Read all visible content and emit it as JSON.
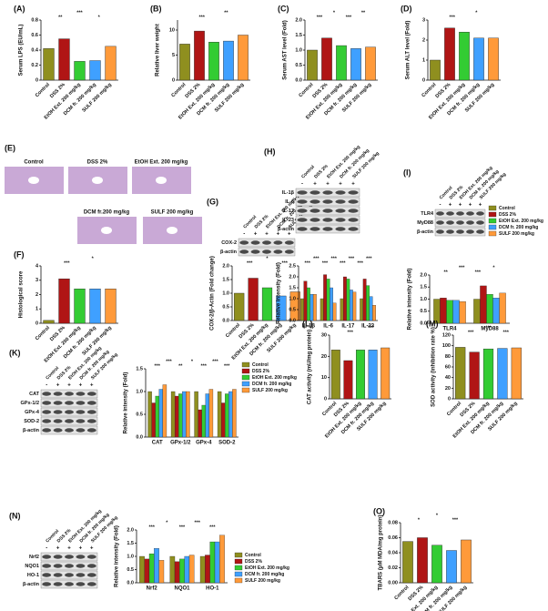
{
  "chart_data": [
    {
      "type": "bar",
      "label": "(A)",
      "y_label": "Serum LPS (EU/mL)",
      "categories": [
        "Control",
        "DSS 2%",
        "EtOH Ext. 200 mg/kg",
        "DCM fr. 200 mg/kg",
        "SULF 200 mg/kg"
      ],
      "values": [
        0.42,
        0.55,
        0.25,
        0.26,
        0.45
      ],
      "colors": [
        "#8f8f1f",
        "#b01515",
        "#33cc33",
        "#3fa0ff",
        "#ff9a3a"
      ],
      "ylim": [
        0,
        0.8
      ],
      "yticks": [
        0,
        0.2,
        0.4,
        0.6,
        0.8
      ],
      "annotations": [
        "**",
        "***",
        "*"
      ]
    },
    {
      "type": "bar",
      "label": "(B)",
      "y_label": "Relative liver weight",
      "categories": [
        "Control",
        "DSS 2%",
        "EtOH Ext. 200 mg/kg",
        "DCM fr. 200 mg/kg",
        "SULF 200 mg/kg"
      ],
      "values": [
        7.2,
        9.8,
        7.6,
        7.8,
        9.0
      ],
      "colors": [
        "#8f8f1f",
        "#b01515",
        "#33cc33",
        "#3fa0ff",
        "#ff9a3a"
      ],
      "ylim": [
        0,
        12
      ],
      "yticks": [
        0,
        5,
        10
      ],
      "annotations": [
        "***",
        "**"
      ]
    },
    {
      "type": "bar",
      "label": "(C)",
      "y_label": "Serum AST level (Fold)",
      "categories": [
        "Control",
        "DSS 2%",
        "EtOH Ext. 200 mg/kg",
        "DCM fr. 200 mg/kg",
        "SULF 200 mg/kg"
      ],
      "values": [
        1.0,
        1.4,
        1.15,
        1.05,
        1.1
      ],
      "colors": [
        "#8f8f1f",
        "#b01515",
        "#33cc33",
        "#3fa0ff",
        "#ff9a3a"
      ],
      "ylim": [
        0,
        2
      ],
      "yticks": [
        {
          "value": 0,
          "label": "0.0"
        },
        0.5,
        {
          "value": 1,
          "label": "1.0"
        },
        1.5,
        {
          "value": 2,
          "label": "2.0"
        }
      ],
      "annotations": [
        "***",
        "*",
        "***",
        "**"
      ]
    },
    {
      "type": "bar",
      "label": "(D)",
      "y_label": "Serum ALT level (Fold)",
      "categories": [
        "Control",
        "DSS 2%",
        "EtOH Ext. 200 mg/kg",
        "DCM fr. 200 mg/kg",
        "SULF 200 mg/kg"
      ],
      "values": [
        1.0,
        2.6,
        2.4,
        2.1,
        2.1
      ],
      "colors": [
        "#8f8f1f",
        "#b01515",
        "#33cc33",
        "#3fa0ff",
        "#ff9a3a"
      ],
      "ylim": [
        0,
        3
      ],
      "yticks": [
        0,
        1,
        2,
        3
      ],
      "annotations": [
        "***",
        "*"
      ]
    },
    {
      "type": "bar",
      "label": "(F)",
      "y_label": "Histological score",
      "categories": [
        "Control",
        "DSS 2%",
        "EtOH Ext. 200 mg/kg",
        "DCM fr. 200 mg/kg",
        "SULF 200 mg/kg"
      ],
      "values": [
        0.2,
        3.1,
        2.4,
        2.4,
        2.4
      ],
      "colors": [
        "#8f8f1f",
        "#b01515",
        "#33cc33",
        "#3fa0ff",
        "#ff9a3a"
      ],
      "ylim": [
        0,
        4
      ],
      "yticks": [
        0,
        1,
        2,
        3,
        4
      ],
      "annotations": [
        "***",
        "*"
      ]
    },
    {
      "type": "bar",
      "y_label": "COX-2/β-Actin (Fold change)",
      "categories": [
        "Control",
        "DSS 2%",
        "EtOH Ext. 200 mg/kg",
        "DCM fr. 200 mg/kg",
        "SULF 200 mg/kg"
      ],
      "values": [
        1.0,
        1.55,
        1.2,
        0.9,
        1.05
      ],
      "colors": [
        "#8f8f1f",
        "#b01515",
        "#33cc33",
        "#3fa0ff",
        "#ff9a3a"
      ],
      "ylim": [
        0,
        2
      ],
      "yticks": [
        {
          "value": 0,
          "label": "0.0"
        },
        0.5,
        {
          "value": 1,
          "label": "1.0"
        },
        1.5,
        {
          "value": 2,
          "label": "2.0"
        }
      ],
      "annotations": [
        "***",
        "*",
        "***"
      ]
    },
    {
      "type": "grouped-bar",
      "y_label": "Relative intensity (Fold)",
      "categories": [
        "IL-1β",
        "IL-6",
        "IL-17",
        "IL-23"
      ],
      "series": [
        {
          "color": "#8f8f1f",
          "values": [
            1.0,
            1.0,
            1.0,
            1.0
          ]
        },
        {
          "color": "#b01515",
          "values": [
            1.8,
            2.1,
            2.0,
            1.9
          ]
        },
        {
          "color": "#33cc33",
          "values": [
            1.5,
            1.9,
            1.9,
            1.6
          ]
        },
        {
          "color": "#3fa0ff",
          "values": [
            1.2,
            1.5,
            1.4,
            1.1
          ]
        },
        {
          "color": "#ff9a3a",
          "values": [
            1.2,
            0.8,
            1.3,
            0.7
          ]
        }
      ],
      "ylim": [
        0,
        2.5
      ],
      "yticks": [
        {
          "value": 0,
          "label": "0.0"
        },
        0.5,
        {
          "value": 1,
          "label": "1.0"
        },
        1.5,
        {
          "value": 2,
          "label": "2.0"
        },
        2.5
      ],
      "annotations": [
        "***",
        "***",
        "***",
        "***",
        "***",
        "***",
        "***",
        "***"
      ]
    },
    {
      "type": "grouped-bar",
      "y_label": "Relative intensity (Fold)",
      "categories": [
        "TLR4",
        "MyD88"
      ],
      "series": [
        {
          "name": "Control",
          "color": "#8f8f1f",
          "values": [
            1.0,
            1.0
          ]
        },
        {
          "name": "DSS 2%",
          "color": "#b01515",
          "values": [
            1.05,
            1.55
          ]
        },
        {
          "name": "EtOH Ext. 200 mg/kg",
          "color": "#33cc33",
          "values": [
            0.95,
            1.2
          ]
        },
        {
          "name": "DCM fr. 200 mg/kg",
          "color": "#3fa0ff",
          "values": [
            0.95,
            1.05
          ]
        },
        {
          "name": "SULF 200 mg/kg",
          "color": "#ff9a3a",
          "values": [
            0.9,
            1.25
          ]
        }
      ],
      "ylim": [
        0,
        2
      ],
      "yticks": [
        {
          "value": 0,
          "label": "0.0"
        },
        0.5,
        {
          "value": 1,
          "label": "1.0"
        },
        1.5,
        {
          "value": 2,
          "label": "2.0"
        }
      ],
      "annotations": [
        "**",
        "***",
        "***",
        "*"
      ]
    },
    {
      "type": "grouped-bar",
      "y_label": "Relative intensity (Fold)",
      "categories": [
        "CAT",
        "GPx-1/2",
        "GPx-4",
        "SOD-2"
      ],
      "series": [
        {
          "name": "Control",
          "color": "#8f8f1f",
          "values": [
            1.0,
            1.0,
            1.0,
            1.0
          ]
        },
        {
          "name": "DSS 2%",
          "color": "#b01515",
          "values": [
            0.75,
            0.9,
            0.6,
            0.75
          ]
        },
        {
          "name": "EtOH Ext. 200 mg/kg",
          "color": "#33cc33",
          "values": [
            0.9,
            0.95,
            0.7,
            0.95
          ]
        },
        {
          "name": "DCM fr. 200 mg/kg",
          "color": "#3fa0ff",
          "values": [
            1.05,
            1.0,
            0.95,
            1.0
          ]
        },
        {
          "name": "SULF 200 mg/kg",
          "color": "#ff9a3a",
          "values": [
            1.15,
            1.0,
            1.05,
            1.05
          ]
        }
      ],
      "ylim": [
        0,
        1.5
      ],
      "yticks": [
        {
          "value": 0,
          "label": "0.0"
        },
        0.5,
        {
          "value": 1,
          "label": "1.0"
        },
        1.5
      ],
      "annotations": [
        "***",
        "***",
        "**",
        "*",
        "***",
        "***",
        "***"
      ]
    },
    {
      "type": "bar",
      "label": "(L)",
      "y_label": "CAT activity (mU/mg protein)",
      "categories": [
        "Control",
        "DSS 2%",
        "EtOH Ext. 200 mg/kg",
        "DCM fr. 200 mg/kg",
        "SULF 200 mg/kg"
      ],
      "values": [
        23,
        18,
        23,
        23,
        24
      ],
      "colors": [
        "#8f8f1f",
        "#b01515",
        "#33cc33",
        "#3fa0ff",
        "#ff9a3a"
      ],
      "ylim": [
        0,
        30
      ],
      "yticks": [
        0,
        10,
        20,
        30
      ],
      "annotations": [
        "***",
        "***"
      ]
    },
    {
      "type": "bar",
      "label": "(M)",
      "y_label": "SOD activity (inhibition rate %)",
      "categories": [
        "Control",
        "DSS 2%",
        "EtOH Ext. 200 mg/kg",
        "DCM fr. 200 mg/kg",
        "SULF 200 mg/kg"
      ],
      "values": [
        97,
        88,
        94,
        95,
        96
      ],
      "colors": [
        "#8f8f1f",
        "#b01515",
        "#33cc33",
        "#3fa0ff",
        "#ff9a3a"
      ],
      "ylim": [
        0,
        120
      ],
      "yticks": [
        0,
        20,
        40,
        60,
        80,
        100,
        120
      ],
      "annotations": [
        "***",
        "***",
        "***"
      ]
    },
    {
      "type": "grouped-bar",
      "y_label": "Relative intensity (Fold)",
      "categories": [
        "Nrf2",
        "NQO1",
        "HO-1"
      ],
      "series": [
        {
          "name": "Control",
          "color": "#8f8f1f",
          "values": [
            1.0,
            1.0,
            1.0
          ]
        },
        {
          "name": "DSS 2%",
          "color": "#b01515",
          "values": [
            0.9,
            0.8,
            1.05
          ]
        },
        {
          "name": "EtOH Ext. 200 mg/kg",
          "color": "#33cc33",
          "values": [
            1.1,
            0.9,
            1.55
          ]
        },
        {
          "name": "DCM fr. 200 mg/kg",
          "color": "#3fa0ff",
          "values": [
            1.3,
            1.0,
            1.55
          ]
        },
        {
          "name": "SULF 200 mg/kg",
          "color": "#ff9a3a",
          "values": [
            0.85,
            1.05,
            1.8
          ]
        }
      ],
      "ylim": [
        0,
        2
      ],
      "yticks": [
        {
          "value": 0,
          "label": "0.0"
        },
        0.5,
        {
          "value": 1,
          "label": "1.0"
        },
        1.5,
        {
          "value": 2,
          "label": "2.0"
        }
      ],
      "annotations": [
        "***",
        "*",
        "***",
        "***",
        "***"
      ]
    },
    {
      "type": "bar",
      "label": "(O)",
      "y_label": "TBARS (μM MDA/mg protein)",
      "categories": [
        "Control",
        "DSS 2%",
        "EtOH Ext. 200 mg/kg",
        "DCM fr. 200 mg/kg",
        "SULF 200 mg/kg"
      ],
      "values": [
        0.055,
        0.06,
        0.05,
        0.043,
        0.057
      ],
      "colors": [
        "#8f8f1f",
        "#b01515",
        "#33cc33",
        "#3fa0ff",
        "#ff9a3a"
      ],
      "ylim": [
        0,
        0.08
      ],
      "yticks": [
        {
          "value": 0,
          "label": "0.00"
        },
        {
          "value": 0.02,
          "label": "0.02"
        },
        {
          "value": 0.04,
          "label": "0.04"
        },
        {
          "value": 0.06,
          "label": "0.06"
        },
        {
          "value": 0.08,
          "label": "0.08"
        }
      ],
      "annotations": [
        "*",
        "*",
        "***"
      ]
    }
  ],
  "micrographs": {
    "label": "(E)",
    "images": [
      "Control",
      "DSS 2%",
      "EtOH Ext. 200 mg/kg",
      "DCM fr.200 mg/kg",
      "SULF 200 mg/kg"
    ]
  },
  "blots": [
    {
      "label": "(G)",
      "lanes": [
        "Control",
        "DSS 2%",
        "EtOH Ext. 200 mg/kg",
        "DCM fr. 200 mg/kg",
        "SULF 200 mg/kg"
      ],
      "signs": [
        "-",
        "+",
        "+",
        "+",
        "+"
      ],
      "rows": [
        "COX-2",
        "β-actin"
      ]
    },
    {
      "label": "(H)",
      "lanes": [
        "Control",
        "DSS 2%",
        "EtOH Ext. 200 mg/kg",
        "DCM fr. 200 mg/kg",
        "SULF 200 mg/kg"
      ],
      "signs": [
        "-",
        "+",
        "+",
        "+",
        "+"
      ],
      "rows": [
        "IL-1β",
        "IL-6",
        "IL-17",
        "IL-23",
        "β-actin"
      ]
    },
    {
      "label": "(I)",
      "lanes": [
        "Control",
        "DSS 2%",
        "EtOH Ext. 200 mg/kg",
        "DCM fr. 200 mg/kg",
        "SULF 200 mg/kg"
      ],
      "signs": [
        "-",
        "+",
        "+",
        "+",
        "+"
      ],
      "rows": [
        "TLR4",
        "MyD88",
        "β-actin"
      ]
    },
    {
      "label": "(K)",
      "lanes": [
        "Control",
        "DSS 2%",
        "EtOH Ext. 200 mg/kg",
        "DCM fr. 200 mg/kg",
        "SULF 200 mg/kg"
      ],
      "signs": [
        "-",
        "+",
        "+",
        "+",
        "+"
      ],
      "rows": [
        "CAT",
        "GPx-1/2",
        "GPx-4",
        "SOD-2",
        "β-actin"
      ]
    },
    {
      "label": "(N)",
      "lanes": [
        "Control",
        "DSS 2%",
        "EtOH Ext. 200 mg/kg",
        "DCM fr. 200 mg/kg",
        "SULF 200 mg/kg"
      ],
      "signs": [
        "-",
        "+",
        "+",
        "+",
        "+"
      ],
      "rows": [
        "Nrf2",
        "NQO1",
        "HO-1",
        "β-actin"
      ]
    }
  ]
}
